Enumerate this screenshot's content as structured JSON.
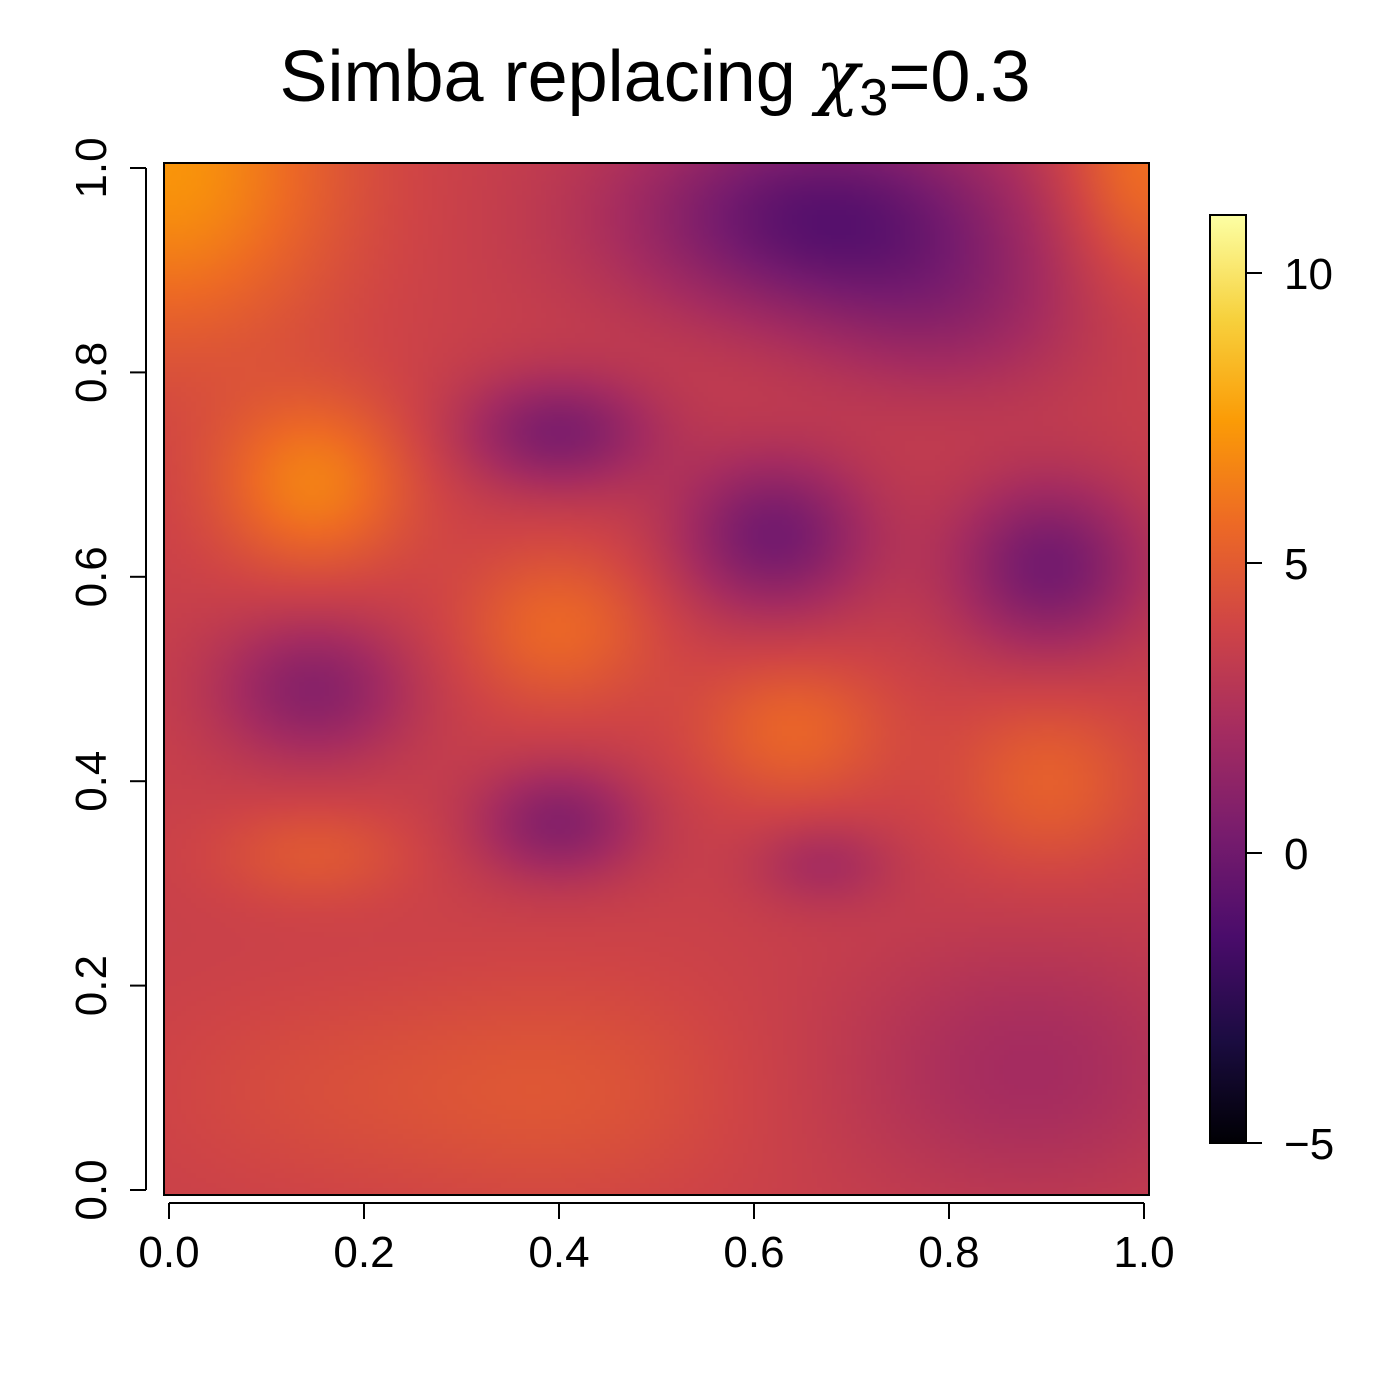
{
  "chart_data": {
    "type": "heatmap",
    "title": {
      "text": "Simba replacing ",
      "symbol": "χ",
      "subscript": "3",
      "suffix": "=0.3"
    },
    "xlabel": "",
    "ylabel": "",
    "xlim": [
      0,
      1
    ],
    "ylim": [
      0,
      1
    ],
    "x_ticks": [
      "0.0",
      "0.2",
      "0.4",
      "0.6",
      "0.8",
      "1.0"
    ],
    "y_ticks": [
      "0.0",
      "0.2",
      "0.4",
      "0.6",
      "0.8",
      "1.0"
    ],
    "colorbar": {
      "range": [
        -5,
        11
      ],
      "ticks": [
        {
          "value": -5,
          "label": "−5"
        },
        {
          "value": 0,
          "label": "0"
        },
        {
          "value": 5,
          "label": "5"
        },
        {
          "value": 10,
          "label": "10"
        }
      ],
      "palette": "inferno",
      "colors": [
        "#000004",
        "#1b0c41",
        "#4a0c6b",
        "#781c6d",
        "#a52c60",
        "#cf4446",
        "#ed6925",
        "#fb9b06",
        "#f7d13d",
        "#fcffa4"
      ]
    },
    "grid": false,
    "field": {
      "base": 3.6,
      "bumps": [
        {
          "x": 0.0,
          "y": 1.0,
          "a": 3.6,
          "sx": 0.12,
          "sy": 0.12
        },
        {
          "x": 0.15,
          "y": 0.69,
          "a": 2.8,
          "sx": 0.07,
          "sy": 0.06
        },
        {
          "x": 0.15,
          "y": 0.49,
          "a": -2.6,
          "sx": 0.07,
          "sy": 0.05
        },
        {
          "x": 0.15,
          "y": 0.33,
          "a": 1.2,
          "sx": 0.07,
          "sy": 0.035
        },
        {
          "x": 0.4,
          "y": 0.74,
          "a": -3.0,
          "sx": 0.07,
          "sy": 0.04
        },
        {
          "x": 0.4,
          "y": 0.55,
          "a": 1.9,
          "sx": 0.07,
          "sy": 0.055
        },
        {
          "x": 0.4,
          "y": 0.36,
          "a": -2.7,
          "sx": 0.06,
          "sy": 0.04
        },
        {
          "x": 0.4,
          "y": 0.1,
          "a": 1.1,
          "sx": 0.13,
          "sy": 0.08
        },
        {
          "x": 0.15,
          "y": 0.1,
          "a": 0.6,
          "sx": 0.12,
          "sy": 0.07
        },
        {
          "x": 0.67,
          "y": 0.95,
          "a": -4.4,
          "sx": 0.14,
          "sy": 0.07
        },
        {
          "x": 0.62,
          "y": 0.64,
          "a": -3.4,
          "sx": 0.07,
          "sy": 0.055
        },
        {
          "x": 0.64,
          "y": 0.45,
          "a": 1.8,
          "sx": 0.07,
          "sy": 0.05
        },
        {
          "x": 0.67,
          "y": 0.32,
          "a": -1.4,
          "sx": 0.05,
          "sy": 0.03
        },
        {
          "x": 0.9,
          "y": 0.61,
          "a": -3.4,
          "sx": 0.07,
          "sy": 0.06
        },
        {
          "x": 0.9,
          "y": 0.4,
          "a": 1.6,
          "sx": 0.07,
          "sy": 0.06
        },
        {
          "x": 0.88,
          "y": 0.12,
          "a": -1.5,
          "sx": 0.13,
          "sy": 0.09
        },
        {
          "x": 1.0,
          "y": 1.0,
          "a": 2.4,
          "sx": 0.06,
          "sy": 0.08
        },
        {
          "x": 0.8,
          "y": 0.85,
          "a": -1.5,
          "sx": 0.1,
          "sy": 0.06
        }
      ]
    }
  }
}
